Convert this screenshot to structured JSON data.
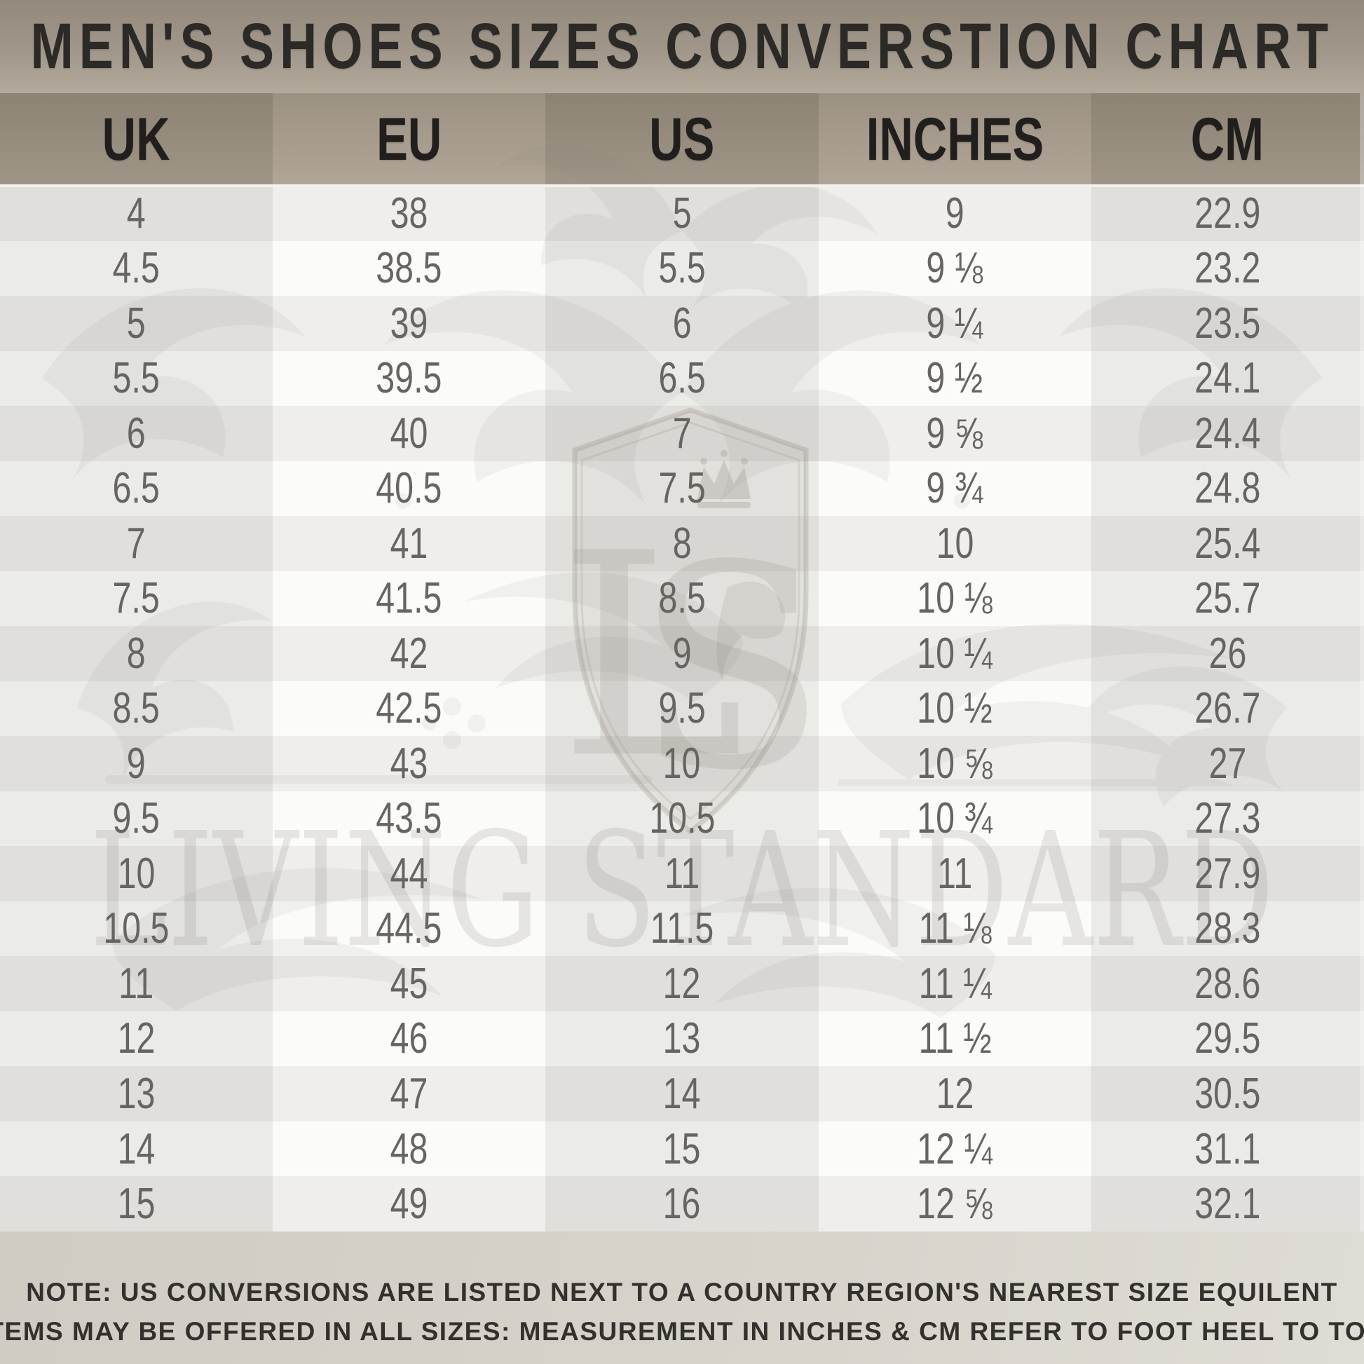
{
  "title": "MEN'S SHOES SIZES CONVERSTION CHART",
  "watermark": {
    "monogram_l": "L",
    "monogram_s": "S",
    "brand": "LIVING STANDARD"
  },
  "note": {
    "label": "NOTE:",
    "line1_rest": "US CONVERSIONS ARE LISTED NEXT TO A COUNTRY REGION'S NEAREST SIZE EQUILENT",
    "line2": "ITEMS MAY BE OFFERED IN ALL SIZES: MEASUREMENT IN INCHES & CM REFER TO FOOT HEEL TO TOE"
  },
  "colors": {
    "title_band_top": "#938a7c",
    "title_band_bottom": "#b3aa9c",
    "header_dark_col": "#968c7e",
    "header_light_col": "#a69b8d",
    "row_odd_light": "#efeeec",
    "row_odd_dark": "#dedcda",
    "row_even_light": "#fbfbf9",
    "row_even_dark": "#e8e6e4",
    "data_text": "#676462",
    "header_text": "#201f1d",
    "note_text": "#33312e",
    "note_band": "#d5d1c8"
  },
  "chart_data": {
    "type": "table",
    "title": "MEN'S SHOES SIZES CONVERSTION CHART",
    "columns": [
      "UK",
      "EU",
      "US",
      "INCHES",
      "CM"
    ],
    "rows": [
      [
        "4",
        "38",
        "5",
        "9",
        "22.9"
      ],
      [
        "4.5",
        "38.5",
        "5.5",
        "9 ⅛",
        "23.2"
      ],
      [
        "5",
        "39",
        "6",
        "9 ¼",
        "23.5"
      ],
      [
        "5.5",
        "39.5",
        "6.5",
        "9 ½",
        "24.1"
      ],
      [
        "6",
        "40",
        "7",
        "9 ⅝",
        "24.4"
      ],
      [
        "6.5",
        "40.5",
        "7.5",
        "9 ¾",
        "24.8"
      ],
      [
        "7",
        "41",
        "8",
        "10",
        "25.4"
      ],
      [
        "7.5",
        "41.5",
        "8.5",
        "10 ⅛",
        "25.7"
      ],
      [
        "8",
        "42",
        "9",
        "10 ¼",
        "26"
      ],
      [
        "8.5",
        "42.5",
        "9.5",
        "10 ½",
        "26.7"
      ],
      [
        "9",
        "43",
        "10",
        "10 ⅝",
        "27"
      ],
      [
        "9.5",
        "43.5",
        "10.5",
        "10 ¾",
        "27.3"
      ],
      [
        "10",
        "44",
        "11",
        "11",
        "27.9"
      ],
      [
        "10.5",
        "44.5",
        "11.5",
        "11 ⅛",
        "28.3"
      ],
      [
        "11",
        "45",
        "12",
        "11 ¼",
        "28.6"
      ],
      [
        "12",
        "46",
        "13",
        "11 ½",
        "29.5"
      ],
      [
        "13",
        "47",
        "14",
        "12",
        "30.5"
      ],
      [
        "14",
        "48",
        "15",
        "12 ¼",
        "31.1"
      ],
      [
        "15",
        "49",
        "16",
        "12 ⅝",
        "32.1"
      ]
    ]
  }
}
